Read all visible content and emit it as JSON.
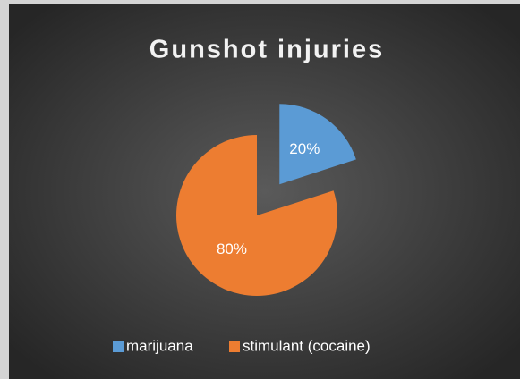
{
  "chart_data": {
    "type": "pie",
    "title": "Gunshot injuries",
    "categories": [
      "marijuana",
      "stimulant (cocaine)"
    ],
    "values": [
      20,
      80
    ],
    "value_labels": [
      "20%",
      "80%"
    ],
    "colors": [
      "#5b9bd5",
      "#ed7d31"
    ],
    "legend": "bottom"
  }
}
